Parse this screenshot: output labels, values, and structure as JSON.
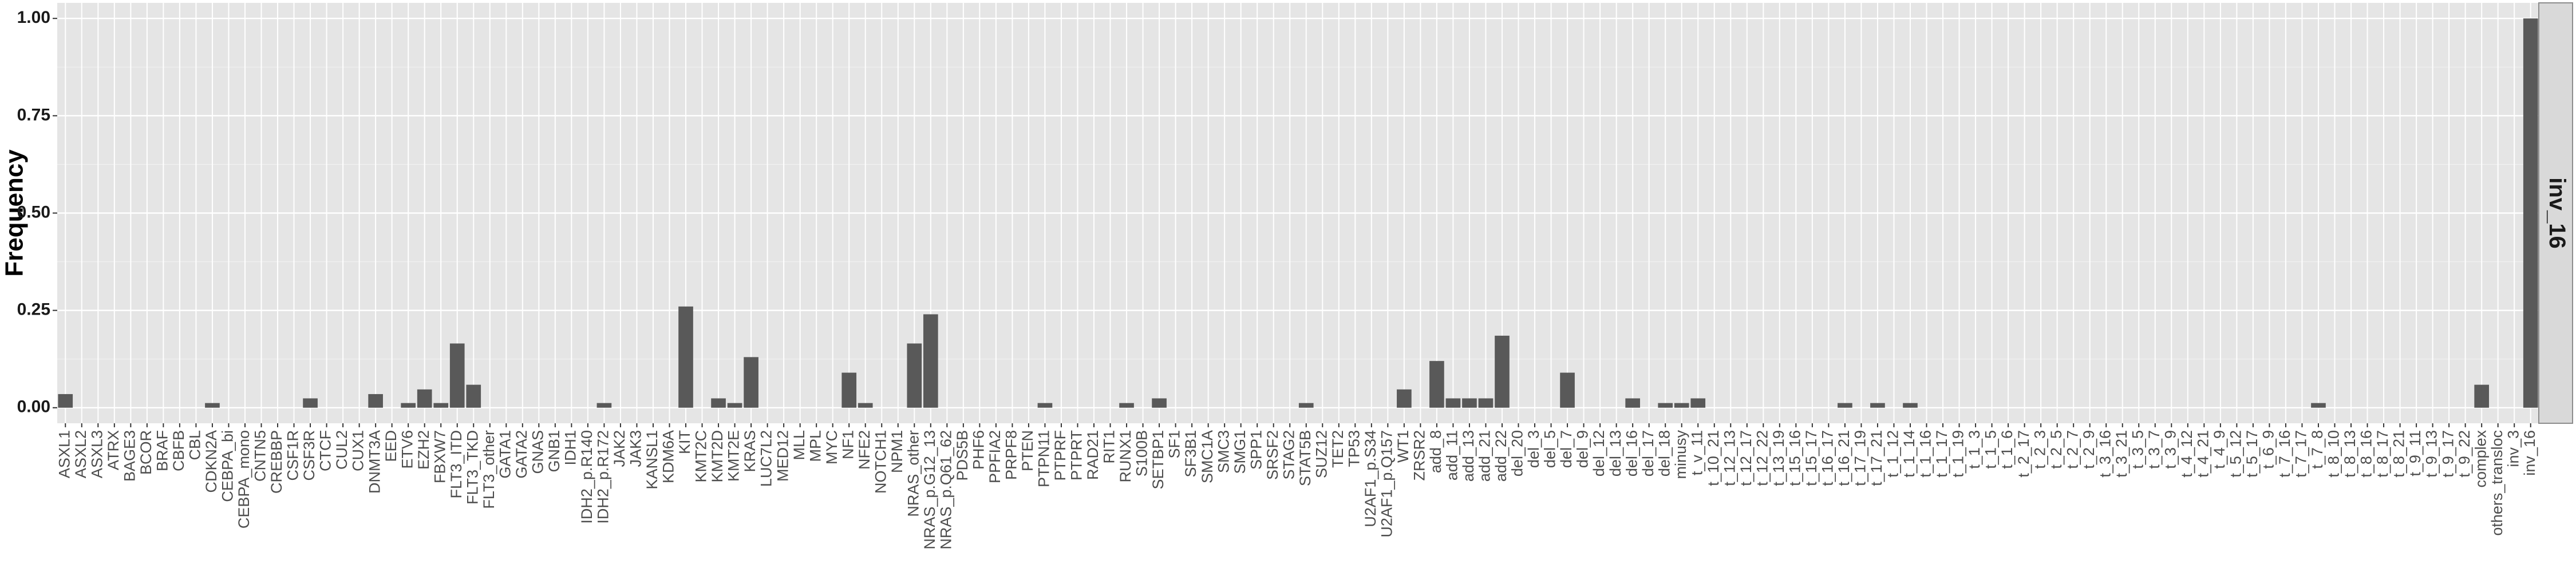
{
  "chart_data": {
    "type": "bar",
    "ylabel": "Frequency",
    "xlabel": "",
    "facet_label": "inv_16",
    "ylim": [
      -0.04,
      1.04
    ],
    "y_ticks": [
      "0.00",
      "0.25",
      "0.50",
      "0.75",
      "1.00"
    ],
    "grid": true,
    "colors": {
      "bar": "#595959",
      "panel": "#e5e5e5",
      "grid_major": "#ffffff",
      "strip": "#d9d9d9"
    },
    "categories": [
      "ASXL1",
      "ASXL2",
      "ASXL3",
      "ATRX",
      "BAGE3",
      "BCOR",
      "BRAF",
      "CBFB",
      "CBL",
      "CDKN2A",
      "CEBPA_bi",
      "CEBPA_mono",
      "CNTN5",
      "CREBBP",
      "CSF1R",
      "CSF3R",
      "CTCF",
      "CUL2",
      "CUX1",
      "DNMT3A",
      "EED",
      "ETV6",
      "EZH2",
      "FBXW7",
      "FLT3_ITD",
      "FLT3_TKD",
      "FLT3_other",
      "GATA1",
      "GATA2",
      "GNAS",
      "GNB1",
      "IDH1",
      "IDH2_p.R140",
      "IDH2_p.R172",
      "JAK2",
      "JAK3",
      "KANSL1",
      "KDM6A",
      "KIT",
      "KMT2C",
      "KMT2D",
      "KMT2E",
      "KRAS",
      "LUC7L2",
      "MED12",
      "MLL",
      "MPL",
      "MYC",
      "NF1",
      "NFE2",
      "NOTCH1",
      "NPM1",
      "NRAS_other",
      "NRAS_p.G12_13",
      "NRAS_p.Q61_62",
      "PDS5B",
      "PHF6",
      "PPFIA2",
      "PRPF8",
      "PTEN",
      "PTPN11",
      "PTPRF",
      "PTPRT",
      "RAD21",
      "RIT1",
      "RUNX1",
      "S100B",
      "SETBP1",
      "SF1",
      "SF3B1",
      "SMC1A",
      "SMC3",
      "SMG1",
      "SPP1",
      "SRSF2",
      "STAG2",
      "STAT5B",
      "SUZ12",
      "TET2",
      "TP53",
      "U2AF1_p.S34",
      "U2AF1_p.Q157",
      "WT1",
      "ZRSR2",
      "add_8",
      "add_11",
      "add_13",
      "add_21",
      "add_22",
      "del_20",
      "del_3",
      "del_5",
      "del_7",
      "del_9",
      "del_12",
      "del_13",
      "del_16",
      "del_17",
      "del_18",
      "minusy",
      "t_v_11",
      "t_10_21",
      "t_12_13",
      "t_12_17",
      "t_12_22",
      "t_13_19",
      "t_15_16",
      "t_15_17",
      "t_16_17",
      "t_16_21",
      "t_17_19",
      "t_17_21",
      "t_1_12",
      "t_1_14",
      "t_1_16",
      "t_1_17",
      "t_1_19",
      "t_1_3",
      "t_1_5",
      "t_1_6",
      "t_2_17",
      "t_2_3",
      "t_2_5",
      "t_2_7",
      "t_2_9",
      "t_3_16",
      "t_3_21",
      "t_3_5",
      "t_3_7",
      "t_3_9",
      "t_4_12",
      "t_4_21",
      "t_4_9",
      "t_5_12",
      "t_5_17",
      "t_6_9",
      "t_7_16",
      "t_7_17",
      "t_7_8",
      "t_8_10",
      "t_8_13",
      "t_8_16",
      "t_8_17",
      "t_8_21",
      "t_9_11",
      "t_9_13",
      "t_9_17",
      "t_9_22",
      "complex",
      "others_transloc",
      "inv_3",
      "inv_16"
    ],
    "values": [
      0.035,
      0,
      0,
      0,
      0,
      0,
      0,
      0,
      0,
      0.012,
      0,
      0,
      0,
      0,
      0,
      0.024,
      0,
      0,
      0,
      0.035,
      0,
      0.012,
      0.047,
      0.012,
      0.165,
      0.059,
      0,
      0,
      0,
      0,
      0,
      0,
      0,
      0.012,
      0,
      0,
      0,
      0,
      0.26,
      0,
      0.024,
      0.012,
      0.13,
      0,
      0,
      0,
      0,
      0,
      0.09,
      0.012,
      0,
      0,
      0.165,
      0.24,
      0,
      0,
      0,
      0,
      0,
      0,
      0.012,
      0,
      0,
      0,
      0,
      0.012,
      0,
      0.024,
      0,
      0,
      0,
      0,
      0,
      0,
      0,
      0,
      0.012,
      0,
      0,
      0,
      0,
      0,
      0.047,
      0,
      0.12,
      0.024,
      0.024,
      0.024,
      0.185,
      0,
      0,
      0,
      0.09,
      0,
      0,
      0,
      0.024,
      0,
      0.012,
      0.012,
      0.024,
      0,
      0,
      0,
      0,
      0,
      0,
      0,
      0,
      0.012,
      0,
      0.012,
      0,
      0.012,
      0,
      0,
      0,
      0,
      0,
      0,
      0,
      0,
      0,
      0,
      0,
      0,
      0,
      0,
      0,
      0,
      0,
      0,
      0,
      0,
      0,
      0,
      0,
      0,
      0.012,
      0,
      0,
      0,
      0,
      0,
      0,
      0,
      0,
      0,
      0.059,
      0,
      0,
      1.0
    ]
  }
}
